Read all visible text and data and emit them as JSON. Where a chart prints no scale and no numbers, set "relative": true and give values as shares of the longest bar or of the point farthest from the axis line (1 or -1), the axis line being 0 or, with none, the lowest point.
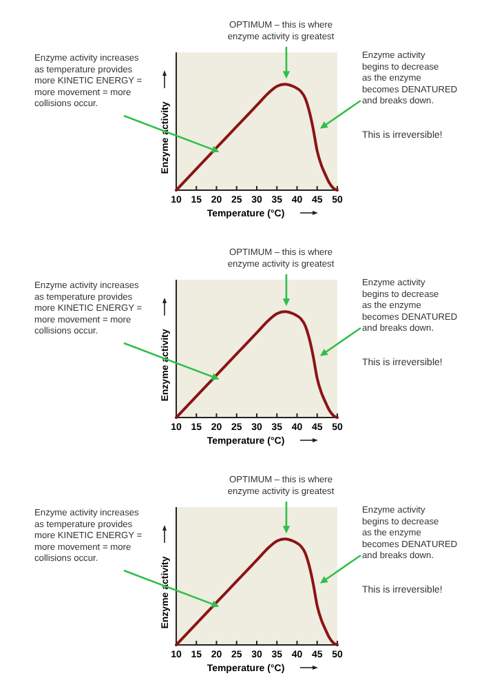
{
  "chart_data": [
    {
      "type": "line",
      "relative": true,
      "xlabel": "Temperature (°C)",
      "ylabel": "Enzyme activity",
      "xlim": [
        10,
        50
      ],
      "xticks": [
        10,
        15,
        20,
        25,
        30,
        35,
        40,
        45,
        50
      ],
      "x": [
        10,
        15,
        20,
        25,
        30,
        33,
        35,
        37,
        39,
        40,
        41,
        42,
        43,
        44,
        45,
        46,
        47,
        48,
        49,
        50
      ],
      "series": [
        {
          "color": "#8b1414",
          "values": [
            0,
            0.2,
            0.4,
            0.6,
            0.8,
            0.92,
            0.98,
            1,
            0.98,
            0.96,
            0.93,
            0.87,
            0.75,
            0.58,
            0.37,
            0.24,
            0.15,
            0.07,
            0.02,
            0
          ]
        }
      ],
      "annotations": [
        {
          "text": "Enzyme activity increases as temperature provides more KINETIC ENERGY = more movement = more collisions occur.",
          "x": 20,
          "y": 0.4
        },
        {
          "text": "OPTIMUM – this is where enzyme activity is greatest",
          "x": 37,
          "y": 1
        },
        {
          "text": "Enzyme activity begins to decrease as the enzyme becomes DENATURED and breaks down.",
          "x": 44,
          "y": 0.58
        },
        "This is irreversible!"
      ]
    },
    {
      "type": "line",
      "relative": true,
      "xlabel": "Temperature (°C)",
      "ylabel": "Enzyme activity",
      "xlim": [
        10,
        50
      ],
      "xticks": [
        10,
        15,
        20,
        25,
        30,
        35,
        40,
        45,
        50
      ],
      "x": [
        10,
        15,
        20,
        25,
        30,
        33,
        35,
        37,
        39,
        40,
        41,
        42,
        43,
        44,
        45,
        46,
        47,
        48,
        49,
        50
      ],
      "series": [
        {
          "color": "#8b1414",
          "values": [
            0,
            0.2,
            0.4,
            0.6,
            0.8,
            0.92,
            0.98,
            1,
            0.98,
            0.96,
            0.93,
            0.87,
            0.75,
            0.58,
            0.37,
            0.24,
            0.15,
            0.07,
            0.02,
            0
          ]
        }
      ],
      "annotations": [
        {
          "text": "Enzyme activity increases as temperature provides more KINETIC ENERGY = more movement = more collisions occur.",
          "x": 20,
          "y": 0.4
        },
        {
          "text": "OPTIMUM – this is where enzyme activity is greatest",
          "x": 37,
          "y": 1
        },
        {
          "text": "Enzyme activity begins to decrease as the enzyme becomes DENATURED and breaks down.",
          "x": 44,
          "y": 0.58
        },
        "This is irreversible!"
      ]
    },
    {
      "type": "line",
      "relative": true,
      "xlabel": "Temperature (°C)",
      "ylabel": "Enzyme activity",
      "xlim": [
        10,
        50
      ],
      "xticks": [
        10,
        15,
        20,
        25,
        30,
        35,
        40,
        45,
        50
      ],
      "x": [
        10,
        15,
        20,
        25,
        30,
        33,
        35,
        37,
        39,
        40,
        41,
        42,
        43,
        44,
        45,
        46,
        47,
        48,
        49,
        50
      ],
      "series": [
        {
          "color": "#8b1414",
          "values": [
            0,
            0.2,
            0.4,
            0.6,
            0.8,
            0.92,
            0.98,
            1,
            0.98,
            0.96,
            0.93,
            0.87,
            0.75,
            0.58,
            0.37,
            0.24,
            0.15,
            0.07,
            0.02,
            0
          ]
        }
      ],
      "annotations": [
        {
          "text": "Enzyme activity increases as temperature provides more KINETIC ENERGY = more movement = more collisions occur.",
          "x": 20,
          "y": 0.4
        },
        {
          "text": "OPTIMUM – this is where enzyme activity is greatest",
          "x": 37,
          "y": 1
        },
        {
          "text": "Enzyme activity begins to decrease as the enzyme becomes DENATURED and breaks down.",
          "x": 44,
          "y": 0.58
        },
        "This is irreversible!"
      ]
    }
  ]
}
